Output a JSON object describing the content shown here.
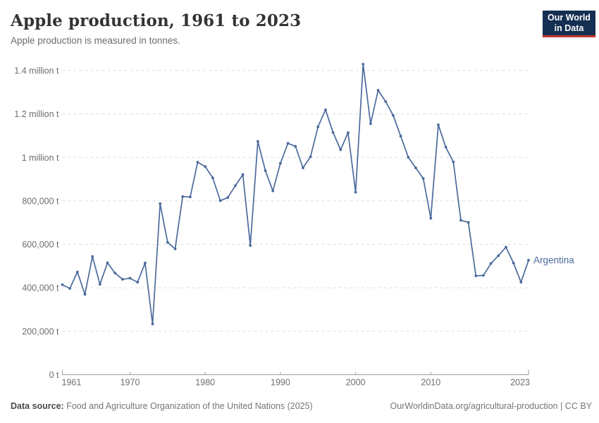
{
  "header": {
    "title": "Apple production, 1961 to 2023",
    "subtitle": "Apple production is measured in tonnes."
  },
  "logo": {
    "line1": "Our World",
    "line2": "in Data",
    "bg_color": "#132F51",
    "accent_color": "#C5362C"
  },
  "footer": {
    "source_label": "Data source:",
    "source_text": " Food and Agriculture Organization of the United Nations (2025)",
    "link_text": "OurWorldinData.org/agricultural-production | CC BY"
  },
  "chart_data": {
    "type": "line",
    "title": "Apple production, 1961 to 2023",
    "unit": "tonnes",
    "xlim": [
      1961,
      2023
    ],
    "ylim": [
      0,
      1400000
    ],
    "grid": "dashed",
    "legend_position": "end-of-line-label",
    "entity_label": "Argentina",
    "colors": {
      "line": "#4C6A9C",
      "grid": "#DDDDDD",
      "axis": "#9E9E9E",
      "tick_label": "#6E6E6E"
    },
    "y_ticks": [
      {
        "value": 0,
        "label": "0 t"
      },
      {
        "value": 200000,
        "label": "200,000 t"
      },
      {
        "value": 400000,
        "label": "400,000 t"
      },
      {
        "value": 600000,
        "label": "600,000 t"
      },
      {
        "value": 800000,
        "label": "800,000 t"
      },
      {
        "value": 1000000,
        "label": "1 million t"
      },
      {
        "value": 1200000,
        "label": "1.2 million t"
      },
      {
        "value": 1400000,
        "label": "1.4 million t"
      }
    ],
    "x_ticks": [
      {
        "year": 1961,
        "label": "1961"
      },
      {
        "year": 1970,
        "label": "1970"
      },
      {
        "year": 1980,
        "label": "1980"
      },
      {
        "year": 1990,
        "label": "1990"
      },
      {
        "year": 2000,
        "label": "2000"
      },
      {
        "year": 2010,
        "label": "2010"
      },
      {
        "year": 2023,
        "label": "2023"
      }
    ],
    "series": [
      {
        "name": "Argentina",
        "color": "#4C6A9C",
        "x": [
          1961,
          1962,
          1963,
          1964,
          1965,
          1966,
          1967,
          1968,
          1969,
          1970,
          1971,
          1972,
          1973,
          1974,
          1975,
          1976,
          1977,
          1978,
          1979,
          1980,
          1981,
          1982,
          1983,
          1984,
          1985,
          1986,
          1987,
          1988,
          1989,
          1990,
          1991,
          1992,
          1993,
          1994,
          1995,
          1996,
          1997,
          1998,
          1999,
          2000,
          2001,
          2002,
          2003,
          2004,
          2005,
          2006,
          2007,
          2008,
          2009,
          2010,
          2011,
          2012,
          2013,
          2014,
          2015,
          2016,
          2017,
          2018,
          2019,
          2020,
          2021,
          2022,
          2023
        ],
        "values": [
          414000,
          397000,
          473000,
          370000,
          544000,
          416000,
          515000,
          468000,
          439000,
          444000,
          426000,
          514000,
          233000,
          787000,
          609000,
          579000,
          820000,
          818000,
          978000,
          958000,
          906000,
          801000,
          815000,
          870000,
          921000,
          595000,
          1074000,
          939000,
          846000,
          973000,
          1065000,
          1051000,
          952000,
          1003000,
          1141000,
          1219000,
          1115000,
          1035000,
          1114000,
          840000,
          1429000,
          1155000,
          1309000,
          1257000,
          1193000,
          1098000,
          1001000,
          952000,
          903000,
          720000,
          1150000,
          1047000,
          979000,
          711000,
          701000,
          455000,
          457000,
          512000,
          548000,
          587000,
          514000,
          426000,
          527000
        ]
      }
    ]
  }
}
